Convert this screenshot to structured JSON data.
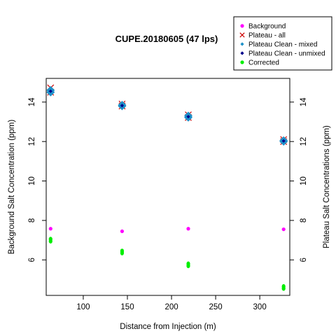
{
  "chart_data": {
    "type": "scatter",
    "title": "CUPE.20180605 (47 lps)",
    "xlabel": "Distance from Injection (m)",
    "ylabel": "Background Salt Concentration (ppm)",
    "ylabel_right": "Plateau Salt Concentrations (ppm)",
    "xlim": [
      58,
      334
    ],
    "ylim": [
      4.2,
      15.2
    ],
    "x_ticks": [
      100,
      150,
      200,
      250,
      300
    ],
    "y_ticks": [
      6,
      8,
      10,
      12,
      14
    ],
    "y_ticks_right": [
      6,
      8,
      10,
      12,
      14
    ],
    "legend_position": "top-right",
    "grid": false,
    "series": [
      {
        "name": "Background",
        "marker": "circle",
        "color": "#ff00ff",
        "points": [
          [
            63,
            7.58
          ],
          [
            144,
            7.45
          ],
          [
            219,
            7.58
          ],
          [
            327,
            7.55
          ]
        ]
      },
      {
        "name": "Plateau - all",
        "marker": "cross",
        "color": "#cc0000",
        "points": [
          [
            63,
            14.72
          ],
          [
            63,
            14.5
          ],
          [
            144,
            13.9
          ],
          [
            144,
            13.8
          ],
          [
            219,
            13.35
          ],
          [
            219,
            13.22
          ],
          [
            327,
            12.1
          ],
          [
            327,
            12.0
          ]
        ]
      },
      {
        "name": "Plateau Clean - mixed",
        "marker": "diamond",
        "color": "#1e90c8",
        "points": [
          [
            63,
            14.6
          ],
          [
            63,
            14.5
          ],
          [
            144,
            13.85
          ],
          [
            144,
            13.8
          ],
          [
            219,
            13.3
          ],
          [
            219,
            13.22
          ],
          [
            327,
            12.05
          ],
          [
            327,
            12.0
          ]
        ]
      },
      {
        "name": "Plateau Clean - unmixed",
        "marker": "diamond",
        "color": "#00008b",
        "points": [
          [
            63,
            14.55
          ],
          [
            144,
            13.82
          ],
          [
            219,
            13.26
          ],
          [
            327,
            12.03
          ]
        ]
      },
      {
        "name": "Corrected",
        "marker": "circle",
        "color": "#00ee00",
        "points": [
          [
            63,
            7.05
          ],
          [
            63,
            6.95
          ],
          [
            144,
            6.45
          ],
          [
            144,
            6.35
          ],
          [
            219,
            5.8
          ],
          [
            219,
            5.7
          ],
          [
            327,
            4.65
          ],
          [
            327,
            4.55
          ]
        ]
      }
    ]
  }
}
